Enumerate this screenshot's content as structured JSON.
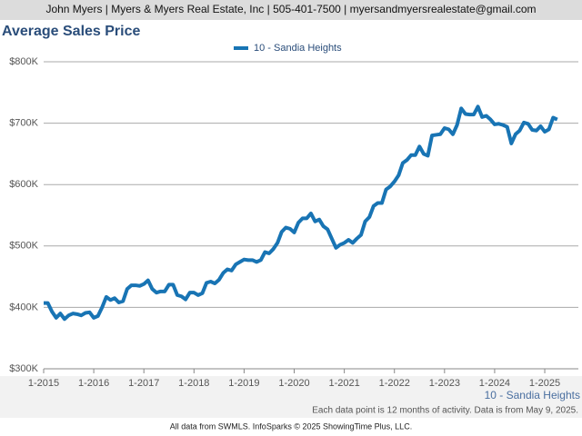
{
  "header": "John Myers | Myers & Myers Real Estate, Inc | 505-401-7500 | myersandmyersrealestate@gmail.com",
  "footer": "All data from SWMLS. InfoSparks © 2025 ShowingTime Plus, LLC.",
  "chart_data": {
    "type": "line",
    "title": "Average Sales Price",
    "note": "Each data point is 12 months of activity. Data is from May 9, 2025.",
    "categories": [
      "1-2015",
      null,
      null,
      null,
      null,
      null,
      null,
      null,
      null,
      null,
      null,
      null,
      "1-2016",
      null,
      null,
      null,
      null,
      null,
      null,
      null,
      null,
      null,
      null,
      null,
      "1-2017",
      null,
      null,
      null,
      null,
      null,
      null,
      null,
      null,
      null,
      null,
      null,
      "1-2018",
      null,
      null,
      null,
      null,
      null,
      null,
      null,
      null,
      null,
      null,
      null,
      "1-2019",
      null,
      null,
      null,
      null,
      null,
      null,
      null,
      null,
      null,
      null,
      null,
      "1-2020",
      null,
      null,
      null,
      null,
      null,
      null,
      null,
      null,
      null,
      null,
      null,
      "1-2021",
      null,
      null,
      null,
      null,
      null,
      null,
      null,
      null,
      null,
      null,
      null,
      "1-2022",
      null,
      null,
      null,
      null,
      null,
      null,
      null,
      null,
      null,
      null,
      null,
      "1-2023",
      null,
      null,
      null,
      null,
      null,
      null,
      null,
      null,
      null,
      null,
      null,
      "1-2024",
      null,
      null,
      null,
      null,
      null,
      null,
      null,
      null,
      null,
      null,
      null,
      "1-2025",
      null,
      null,
      null
    ],
    "series": [
      {
        "name": "10 - Sandia Heights",
        "color": "#1874b4",
        "values": [
          407000,
          407000,
          393000,
          383000,
          390000,
          381000,
          387000,
          390000,
          389000,
          387000,
          391000,
          392000,
          383000,
          386000,
          400000,
          417000,
          412000,
          415000,
          408000,
          410000,
          430000,
          436000,
          436000,
          435000,
          438000,
          444000,
          430000,
          424000,
          426000,
          426000,
          437000,
          437000,
          420000,
          418000,
          413000,
          424000,
          424000,
          420000,
          423000,
          440000,
          442000,
          439000,
          445000,
          456000,
          462000,
          460000,
          470000,
          474000,
          478000,
          477000,
          477000,
          474000,
          477000,
          490000,
          488000,
          495000,
          505000,
          523000,
          530000,
          528000,
          522000,
          538000,
          545000,
          545000,
          553000,
          540000,
          543000,
          532000,
          527000,
          512000,
          497000,
          502000,
          505000,
          510000,
          505000,
          512000,
          518000,
          540000,
          547000,
          565000,
          570000,
          570000,
          592000,
          597000,
          605000,
          615000,
          635000,
          640000,
          648000,
          648000,
          662000,
          650000,
          647000,
          680000,
          681000,
          682000,
          692000,
          690000,
          682000,
          697000,
          724000,
          715000,
          714000,
          714000,
          727000,
          710000,
          712000,
          706000,
          698000,
          699000,
          697000,
          694000,
          667000,
          682000,
          688000,
          701000,
          699000,
          689000,
          688000,
          695000,
          686000,
          690000,
          709000,
          706000
        ]
      }
    ],
    "ylim": [
      300000,
      800000
    ],
    "yticks": [
      {
        "value": 300000,
        "label": "$300K"
      },
      {
        "value": 400000,
        "label": "$400K"
      },
      {
        "value": 500000,
        "label": "$500K"
      },
      {
        "value": 600000,
        "label": "$600K"
      },
      {
        "value": 700000,
        "label": "$700K"
      },
      {
        "value": 800000,
        "label": "$800K"
      }
    ],
    "grid": true
  }
}
